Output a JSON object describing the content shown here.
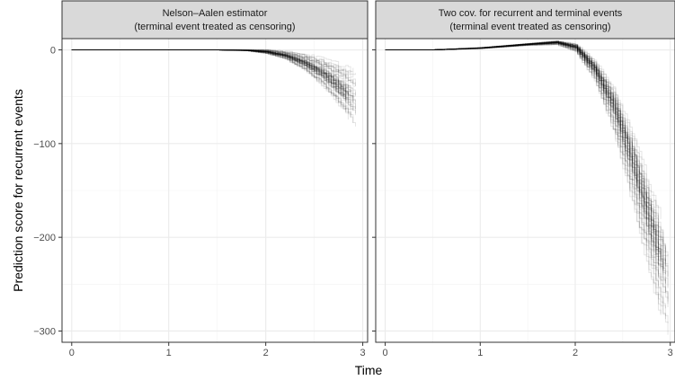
{
  "chart_data": {
    "type": "line",
    "xlabel": "Time",
    "ylabel": "Prediction score for recurrent events",
    "xlim": [
      -0.1,
      3.05
    ],
    "ylim": [
      -312,
      12
    ],
    "x_ticks": [
      0,
      1,
      2,
      3
    ],
    "y_ticks": [
      0,
      -100,
      -200,
      -300
    ],
    "grid": true,
    "series_style": "many semi-transparent black step curves (bootstrap replicates)",
    "colors": {
      "line": "#000000",
      "strip_bg": "#d9d9d9",
      "panel_border": "#333333",
      "grid": "#ebebeb"
    },
    "panels": [
      {
        "title_line1": "Nelson–Aalen estimator",
        "title_line2": "(terminal event treated as censoring)",
        "x": [
          0,
          0.5,
          1.0,
          1.5,
          1.8,
          2.0,
          2.2,
          2.4,
          2.6,
          2.8,
          2.95
        ],
        "y_center": [
          0,
          0,
          0,
          0,
          -0.5,
          -2,
          -6,
          -14,
          -26,
          -43,
          -60
        ],
        "y_spread": [
          0,
          0,
          0,
          0,
          0.5,
          2,
          4,
          8,
          14,
          22,
          32
        ]
      },
      {
        "title_line1": "Two cov. for recurrent and terminal events",
        "title_line2": "(terminal event treated as censoring)",
        "x": [
          0,
          0.5,
          1.0,
          1.5,
          1.8,
          2.0,
          2.2,
          2.4,
          2.6,
          2.8,
          3.0
        ],
        "y_center": [
          0,
          0,
          2,
          6,
          8,
          3,
          -20,
          -60,
          -120,
          -190,
          -255
        ],
        "y_spread": [
          0,
          0,
          0.5,
          1,
          2,
          4,
          10,
          22,
          35,
          45,
          55
        ]
      }
    ]
  }
}
